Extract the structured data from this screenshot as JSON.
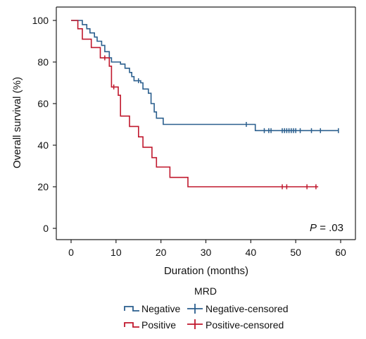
{
  "chart_data": {
    "type": "line",
    "xlabel": "Duration (months)",
    "ylabel": "Overall survival (%)",
    "xlim": [
      0,
      60
    ],
    "ylim": [
      0,
      100
    ],
    "xticks": [
      "0",
      "10",
      "20",
      "30",
      "40",
      "50",
      "60"
    ],
    "yticks": [
      "0",
      "20",
      "40",
      "60",
      "80",
      "100"
    ],
    "grid": false,
    "annotation": {
      "italic": "P",
      "text": " = .03"
    },
    "legend": {
      "title": "MRD",
      "placement": "bottom",
      "entries": [
        "Negative",
        "Negative-censored",
        "Positive",
        "Positive-censored"
      ]
    },
    "series": [
      {
        "name": "Negative",
        "color": "#2b5f8e",
        "step": [
          [
            0,
            100
          ],
          [
            2.5,
            100
          ],
          [
            2.5,
            98
          ],
          [
            3.5,
            98
          ],
          [
            3.5,
            96
          ],
          [
            4.2,
            96
          ],
          [
            4.2,
            94
          ],
          [
            5.2,
            94
          ],
          [
            5.2,
            92
          ],
          [
            5.8,
            92
          ],
          [
            5.8,
            90
          ],
          [
            6.8,
            90
          ],
          [
            6.8,
            88
          ],
          [
            7.5,
            88
          ],
          [
            7.5,
            85
          ],
          [
            8.5,
            85
          ],
          [
            8.5,
            82
          ],
          [
            9,
            82
          ],
          [
            9,
            80
          ],
          [
            11,
            80
          ],
          [
            11,
            79
          ],
          [
            12,
            79
          ],
          [
            12,
            77
          ],
          [
            13,
            77
          ],
          [
            13,
            75
          ],
          [
            13.5,
            75
          ],
          [
            13.5,
            73
          ],
          [
            14,
            73
          ],
          [
            14,
            71
          ],
          [
            15.5,
            71
          ],
          [
            15.5,
            70
          ],
          [
            16,
            70
          ],
          [
            16,
            67
          ],
          [
            17.2,
            67
          ],
          [
            17.2,
            65
          ],
          [
            17.8,
            65
          ],
          [
            17.8,
            60
          ],
          [
            18.5,
            60
          ],
          [
            18.5,
            56
          ],
          [
            19,
            56
          ],
          [
            19,
            53
          ],
          [
            20.5,
            53
          ],
          [
            20.5,
            50
          ],
          [
            41,
            50
          ],
          [
            41,
            47
          ],
          [
            59.5,
            47
          ]
        ],
        "censored": [
          [
            15,
            71
          ],
          [
            39,
            50
          ],
          [
            43,
            47
          ],
          [
            44,
            47
          ],
          [
            44.5,
            47
          ],
          [
            47,
            47
          ],
          [
            47.5,
            47
          ],
          [
            48,
            47
          ],
          [
            48.5,
            47
          ],
          [
            49,
            47
          ],
          [
            49.5,
            47
          ],
          [
            50,
            47
          ],
          [
            51,
            47
          ],
          [
            53.5,
            47
          ],
          [
            55.5,
            47
          ],
          [
            59.5,
            47
          ]
        ]
      },
      {
        "name": "Positive",
        "color": "#c0182d",
        "step": [
          [
            0,
            100
          ],
          [
            1.5,
            100
          ],
          [
            1.5,
            96
          ],
          [
            2.5,
            96
          ],
          [
            2.5,
            91
          ],
          [
            4.5,
            91
          ],
          [
            4.5,
            87
          ],
          [
            6.5,
            87
          ],
          [
            6.5,
            82
          ],
          [
            8.5,
            82
          ],
          [
            8.5,
            78
          ],
          [
            9,
            78
          ],
          [
            9,
            68
          ],
          [
            10.5,
            68
          ],
          [
            10.5,
            64
          ],
          [
            11,
            64
          ],
          [
            11,
            54
          ],
          [
            13,
            54
          ],
          [
            13,
            49
          ],
          [
            15,
            49
          ],
          [
            15,
            44
          ],
          [
            16,
            44
          ],
          [
            16,
            39
          ],
          [
            18,
            39
          ],
          [
            18,
            34
          ],
          [
            19,
            34
          ],
          [
            19,
            29.5
          ],
          [
            22,
            29.5
          ],
          [
            22,
            24.5
          ],
          [
            26,
            24.5
          ],
          [
            26,
            20
          ],
          [
            55,
            20
          ]
        ],
        "censored": [
          [
            7.5,
            82
          ],
          [
            9.5,
            68
          ],
          [
            47,
            20
          ],
          [
            48,
            20
          ],
          [
            52.5,
            20
          ],
          [
            54.5,
            20
          ]
        ]
      }
    ]
  }
}
